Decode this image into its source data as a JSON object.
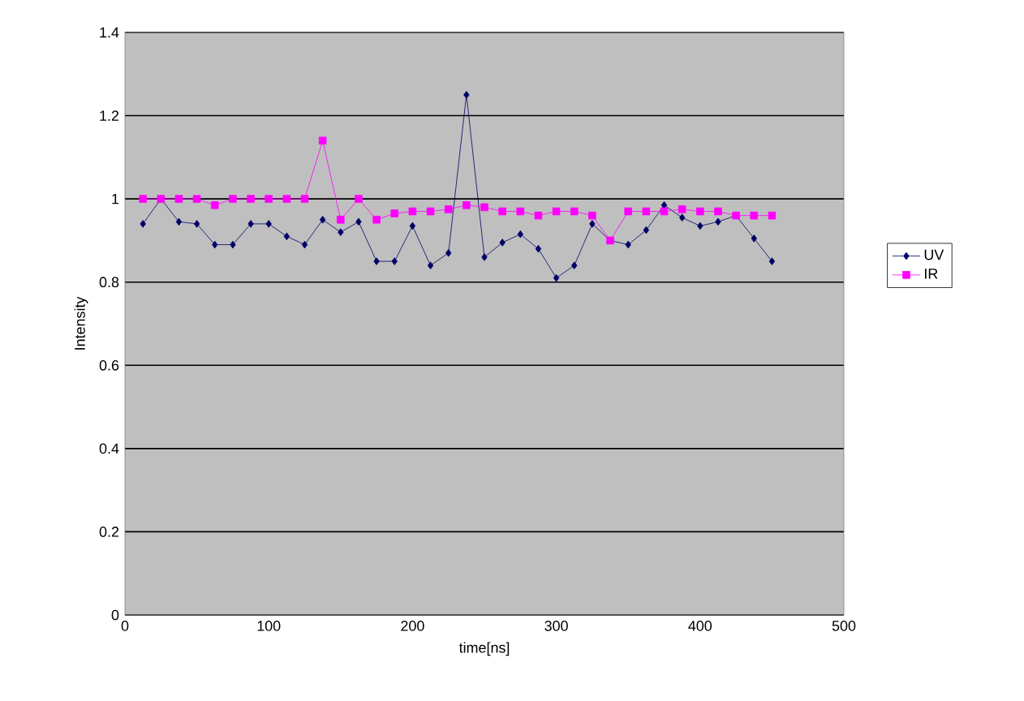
{
  "chart_data": {
    "type": "line",
    "xlabel": "time[ns]",
    "ylabel": "Intensity",
    "x": [
      12.5,
      25,
      37.5,
      50,
      62.5,
      75,
      87.5,
      100,
      112.5,
      125,
      137.5,
      150,
      162.5,
      175,
      187.5,
      200,
      212.5,
      225,
      237.5,
      250,
      262.5,
      275,
      287.5,
      300,
      312.5,
      325,
      337.5,
      350,
      362.5,
      375,
      387.5,
      400,
      412.5,
      425,
      437.5,
      450
    ],
    "series": [
      {
        "name": "UV",
        "color": "#000066",
        "marker": "diamond",
        "values": [
          0.94,
          1.0,
          0.945,
          0.94,
          0.89,
          0.89,
          0.94,
          0.94,
          0.91,
          0.89,
          0.95,
          0.92,
          0.945,
          0.85,
          0.85,
          0.935,
          0.84,
          0.87,
          1.25,
          0.86,
          0.895,
          0.915,
          0.88,
          0.81,
          0.84,
          0.94,
          0.9,
          0.89,
          0.925,
          0.985,
          0.955,
          0.935,
          0.945,
          0.96,
          0.905,
          0.85
        ]
      },
      {
        "name": "IR",
        "color": "#ff00ff",
        "marker": "square",
        "values": [
          1.0,
          1.0,
          1.0,
          1.0,
          0.985,
          1.0,
          1.0,
          1.0,
          1.0,
          1.0,
          1.14,
          0.95,
          1.0,
          0.95,
          0.965,
          0.97,
          0.97,
          0.975,
          0.985,
          0.98,
          0.97,
          0.97,
          0.96,
          0.97,
          0.97,
          0.96,
          0.9,
          0.97,
          0.97,
          0.97,
          0.975,
          0.97,
          0.97,
          0.96,
          0.96,
          0.96
        ]
      }
    ],
    "xlim": [
      0,
      500
    ],
    "xticks": [
      0,
      100,
      200,
      300,
      400,
      500
    ],
    "ylim": [
      0,
      1.4
    ],
    "yticks": [
      0,
      0.2,
      0.4,
      0.6,
      0.8,
      1,
      1.2,
      1.4
    ],
    "grid": "y",
    "legend": "right",
    "line_style": "solid"
  }
}
